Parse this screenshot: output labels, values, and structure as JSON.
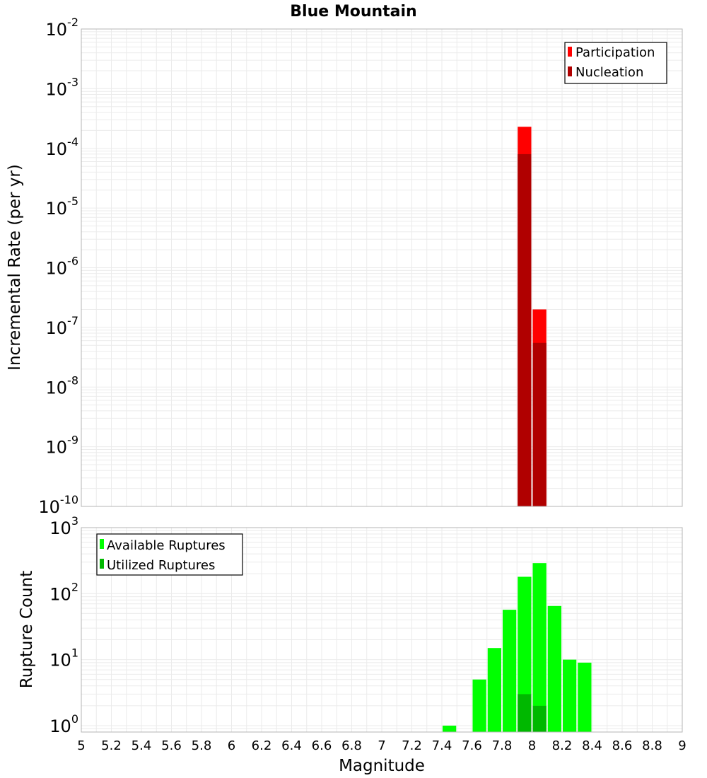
{
  "chart_data": [
    {
      "panel": "top",
      "type": "bar",
      "title": "Blue Mountain",
      "xlabel": "Magnitude",
      "ylabel": "Incremental Rate (per yr)",
      "yscale": "log",
      "xlim": [
        5,
        9
      ],
      "ylim": [
        1e-10,
        0.01
      ],
      "y_ticks": [
        {
          "base": "10",
          "exp": "-10",
          "value": 1e-10
        },
        {
          "base": "10",
          "exp": "-9",
          "value": 1e-09
        },
        {
          "base": "10",
          "exp": "-8",
          "value": 1e-08
        },
        {
          "base": "10",
          "exp": "-7",
          "value": 1e-07
        },
        {
          "base": "10",
          "exp": "-6",
          "value": 1e-06
        },
        {
          "base": "10",
          "exp": "-5",
          "value": 1e-05
        },
        {
          "base": "10",
          "exp": "-4",
          "value": 0.0001
        },
        {
          "base": "10",
          "exp": "-3",
          "value": 0.001
        },
        {
          "base": "10",
          "exp": "-2",
          "value": 0.01
        }
      ],
      "legend_position": "top-right",
      "series": [
        {
          "name": "Participation",
          "color": "#ff0000",
          "x": [
            7.95,
            8.05
          ],
          "values": [
            0.00023,
            2e-07
          ]
        },
        {
          "name": "Nucleation",
          "color": "#b00000",
          "x": [
            7.95,
            8.05
          ],
          "values": [
            8e-05,
            5.5e-08
          ]
        }
      ],
      "grid": true
    },
    {
      "panel": "bottom",
      "type": "bar",
      "xlabel": "Magnitude",
      "ylabel": "Rupture Count",
      "yscale": "log",
      "xlim": [
        5,
        9
      ],
      "ylim": [
        0.8,
        1000
      ],
      "y_ticks": [
        {
          "base": "10",
          "exp": "0",
          "value": 1
        },
        {
          "base": "10",
          "exp": "1",
          "value": 10
        },
        {
          "base": "10",
          "exp": "2",
          "value": 100
        },
        {
          "base": "10",
          "exp": "3",
          "value": 1000
        }
      ],
      "x_ticks": [
        "5",
        "5.2",
        "5.4",
        "5.6",
        "5.8",
        "6",
        "6.2",
        "6.4",
        "6.6",
        "6.8",
        "7",
        "7.2",
        "7.4",
        "7.6",
        "7.8",
        "8",
        "8.2",
        "8.4",
        "8.6",
        "8.8",
        "9"
      ],
      "legend_position": "top-left",
      "series": [
        {
          "name": "Available Ruptures",
          "color": "#00ff00",
          "x": [
            7.45,
            7.65,
            7.75,
            7.85,
            7.95,
            8.05,
            8.15,
            8.25,
            8.35
          ],
          "values": [
            1,
            5,
            15,
            57,
            180,
            290,
            65,
            10,
            9
          ]
        },
        {
          "name": "Utilized Ruptures",
          "color": "#00b800",
          "x": [
            7.95,
            8.05
          ],
          "values": [
            3,
            2
          ]
        }
      ],
      "grid": true
    }
  ]
}
